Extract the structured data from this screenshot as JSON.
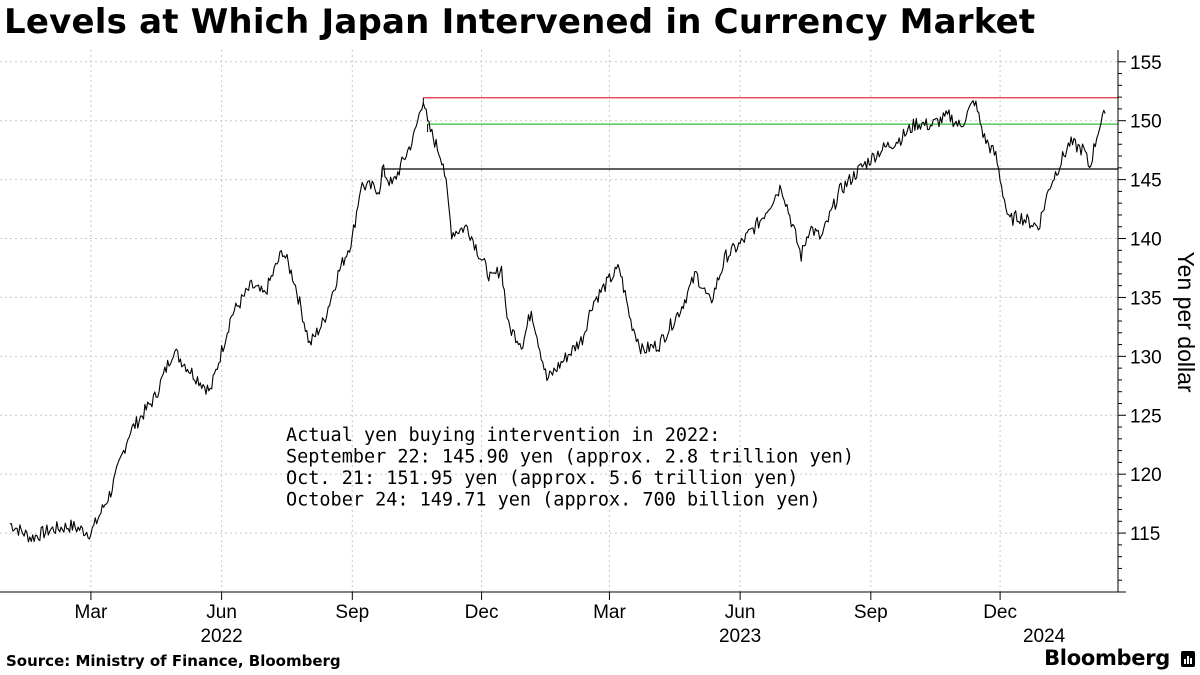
{
  "title": "Levels at Which Japan Intervened in Currency Market",
  "source": "Source: Ministry of Finance, Bloomberg",
  "brand": "Bloomberg",
  "chart_data": {
    "type": "line",
    "title": "Levels at Which Japan Intervened in Currency Market",
    "xlabel": "",
    "ylabel": "Yen per dollar",
    "ylim": [
      110,
      156
    ],
    "yticks": [
      115,
      120,
      125,
      130,
      135,
      140,
      145,
      150,
      155
    ],
    "grid": true,
    "x_ticks": [
      {
        "label": "Mar",
        "date": "2022-03-01"
      },
      {
        "label": "Jun",
        "date": "2022-06-01"
      },
      {
        "label": "Sep",
        "date": "2022-09-01"
      },
      {
        "label": "Dec",
        "date": "2022-12-01"
      },
      {
        "label": "Mar",
        "date": "2023-03-01"
      },
      {
        "label": "Jun",
        "date": "2023-06-01"
      },
      {
        "label": "Sep",
        "date": "2023-09-01"
      },
      {
        "label": "Dec",
        "date": "2023-12-01"
      }
    ],
    "year_labels": [
      {
        "label": "2022",
        "date": "2022-06-01"
      },
      {
        "label": "2023",
        "date": "2023-06-01"
      },
      {
        "label": "2024",
        "date": "2024-01-01"
      }
    ],
    "series": [
      {
        "points": [
          [
            "2022-01-03",
            115.8
          ],
          [
            "2022-01-18",
            114.6
          ],
          [
            "2022-02-01",
            115.3
          ],
          [
            "2022-02-15",
            115.6
          ],
          [
            "2022-03-01",
            115.0
          ],
          [
            "2022-03-15",
            118.5
          ],
          [
            "2022-03-28",
            123.5
          ],
          [
            "2022-04-15",
            126.5
          ],
          [
            "2022-04-28",
            130.5
          ],
          [
            "2022-05-12",
            128.5
          ],
          [
            "2022-05-24",
            127.0
          ],
          [
            "2022-06-08",
            133.5
          ],
          [
            "2022-06-22",
            136.0
          ],
          [
            "2022-07-01",
            135.2
          ],
          [
            "2022-07-14",
            139.0
          ],
          [
            "2022-07-22",
            136.5
          ],
          [
            "2022-08-02",
            131.0
          ],
          [
            "2022-08-12",
            133.0
          ],
          [
            "2022-08-22",
            137.0
          ],
          [
            "2022-09-01",
            140.0
          ],
          [
            "2022-09-07",
            144.5
          ],
          [
            "2022-09-21",
            144.2
          ],
          [
            "2022-09-22",
            145.9
          ],
          [
            "2022-09-29",
            144.5
          ],
          [
            "2022-10-14",
            148.5
          ],
          [
            "2022-10-21",
            151.95
          ],
          [
            "2022-10-24",
            149.71
          ],
          [
            "2022-11-04",
            146.5
          ],
          [
            "2022-11-10",
            140.5
          ],
          [
            "2022-11-21",
            141.0
          ],
          [
            "2022-11-30",
            138.5
          ],
          [
            "2022-12-08",
            136.5
          ],
          [
            "2022-12-15",
            137.5
          ],
          [
            "2022-12-20",
            132.5
          ],
          [
            "2022-12-30",
            131.0
          ],
          [
            "2023-01-05",
            134.0
          ],
          [
            "2023-01-16",
            128.0
          ],
          [
            "2023-01-30",
            130.0
          ],
          [
            "2023-02-10",
            131.5
          ],
          [
            "2023-02-17",
            134.5
          ],
          [
            "2023-03-01",
            136.5
          ],
          [
            "2023-03-08",
            137.5
          ],
          [
            "2023-03-16",
            133.0
          ],
          [
            "2023-03-24",
            130.5
          ],
          [
            "2023-04-05",
            131.0
          ],
          [
            "2023-04-20",
            134.0
          ],
          [
            "2023-05-01",
            137.0
          ],
          [
            "2023-05-11",
            134.5
          ],
          [
            "2023-05-22",
            138.5
          ],
          [
            "2023-06-01",
            139.5
          ],
          [
            "2023-06-15",
            141.5
          ],
          [
            "2023-06-30",
            144.5
          ],
          [
            "2023-07-14",
            138.5
          ],
          [
            "2023-07-20",
            141.0
          ],
          [
            "2023-07-28",
            140.0
          ],
          [
            "2023-08-10",
            144.0
          ],
          [
            "2023-08-25",
            146.0
          ],
          [
            "2023-09-08",
            147.5
          ],
          [
            "2023-09-22",
            148.5
          ],
          [
            "2023-10-03",
            149.8
          ],
          [
            "2023-10-13",
            149.6
          ],
          [
            "2023-10-26",
            150.4
          ],
          [
            "2023-11-03",
            149.5
          ],
          [
            "2023-11-13",
            151.7
          ],
          [
            "2023-11-20",
            148.5
          ],
          [
            "2023-11-28",
            147.0
          ],
          [
            "2023-12-07",
            141.5
          ],
          [
            "2023-12-14",
            141.9
          ],
          [
            "2023-12-28",
            141.0
          ],
          [
            "2024-01-05",
            144.5
          ],
          [
            "2024-01-19",
            148.1
          ],
          [
            "2024-01-29",
            147.5
          ],
          [
            "2024-02-02",
            146.0
          ],
          [
            "2024-02-08",
            149.2
          ],
          [
            "2024-02-13",
            150.6
          ]
        ]
      }
    ],
    "reference_lines": [
      {
        "value": 151.95,
        "start": "2022-10-21",
        "color": "#e0303a"
      },
      {
        "value": 149.71,
        "start": "2022-10-24",
        "color": "#2fbf3a"
      },
      {
        "value": 145.9,
        "start": "2022-09-22",
        "color": "#000000"
      }
    ],
    "annotation": [
      "Actual yen buying intervention in 2022:",
      "September 22: 145.90 yen (approx. 2.8 trillion yen)",
      "Oct. 21: 151.95 yen (approx. 5.6 trillion yen)",
      "October 24: 149.71 yen (approx. 700 billion yen)"
    ]
  }
}
